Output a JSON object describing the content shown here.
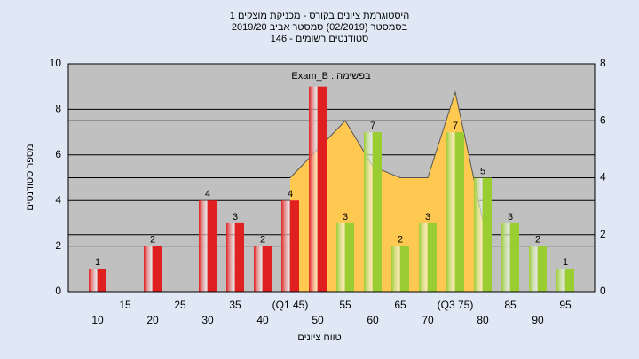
{
  "chart_data": {
    "type": "bar",
    "title": [
      "היסטוגרמת ציונים בקורס - מכניקת מוצקים 1",
      "בסמסטר  (02/2019)  סמסטר אביב 2019/20",
      "סטודנטים רשומים - 146"
    ],
    "annotation": "Exam_B : בפשימה",
    "x_label": "טווח ציונים",
    "y_label": "מספר סטודנטים",
    "categories": [
      "10",
      "15",
      "20",
      "25",
      "30",
      "35",
      "40",
      "(Q1 45)",
      "50",
      "55",
      "60",
      "65",
      "70",
      "(Q3 75)",
      "80",
      "85",
      "90",
      "95"
    ],
    "series": [
      {
        "values": [
          1,
          0,
          2,
          0,
          4,
          3,
          2,
          4,
          9,
          3,
          7,
          2,
          3,
          7,
          5,
          3,
          2,
          1
        ],
        "value_labels": [
          "1",
          null,
          "2",
          null,
          "4",
          "3",
          "2",
          "4",
          null,
          "3",
          "7",
          "2",
          "3",
          "7",
          "5",
          "3",
          "2",
          "1"
        ],
        "colors": [
          "#e02020",
          "#e02020",
          "#e02020",
          "#e02020",
          "#e02020",
          "#e02020",
          "#e02020",
          "#e02020",
          "#e02020",
          "#9acd32",
          "#9acd32",
          "#9acd32",
          "#9acd32",
          "#9acd32",
          "#9acd32",
          "#9acd32",
          "#9acd32",
          "#9acd32"
        ]
      },
      {
        "type": "area",
        "axis": "y2",
        "color": "#ffc850",
        "values": [
          null,
          null,
          null,
          null,
          null,
          null,
          null,
          4,
          5,
          6,
          4.4,
          4,
          4,
          7,
          2.5,
          null,
          null,
          null
        ]
      }
    ],
    "ylim": [
      0,
      10
    ],
    "yticks": [
      0,
      2,
      4,
      6,
      8,
      10
    ],
    "y2lim": [
      0,
      8
    ],
    "y2ticks": [
      0,
      2,
      4,
      6,
      8
    ],
    "grid": true
  }
}
